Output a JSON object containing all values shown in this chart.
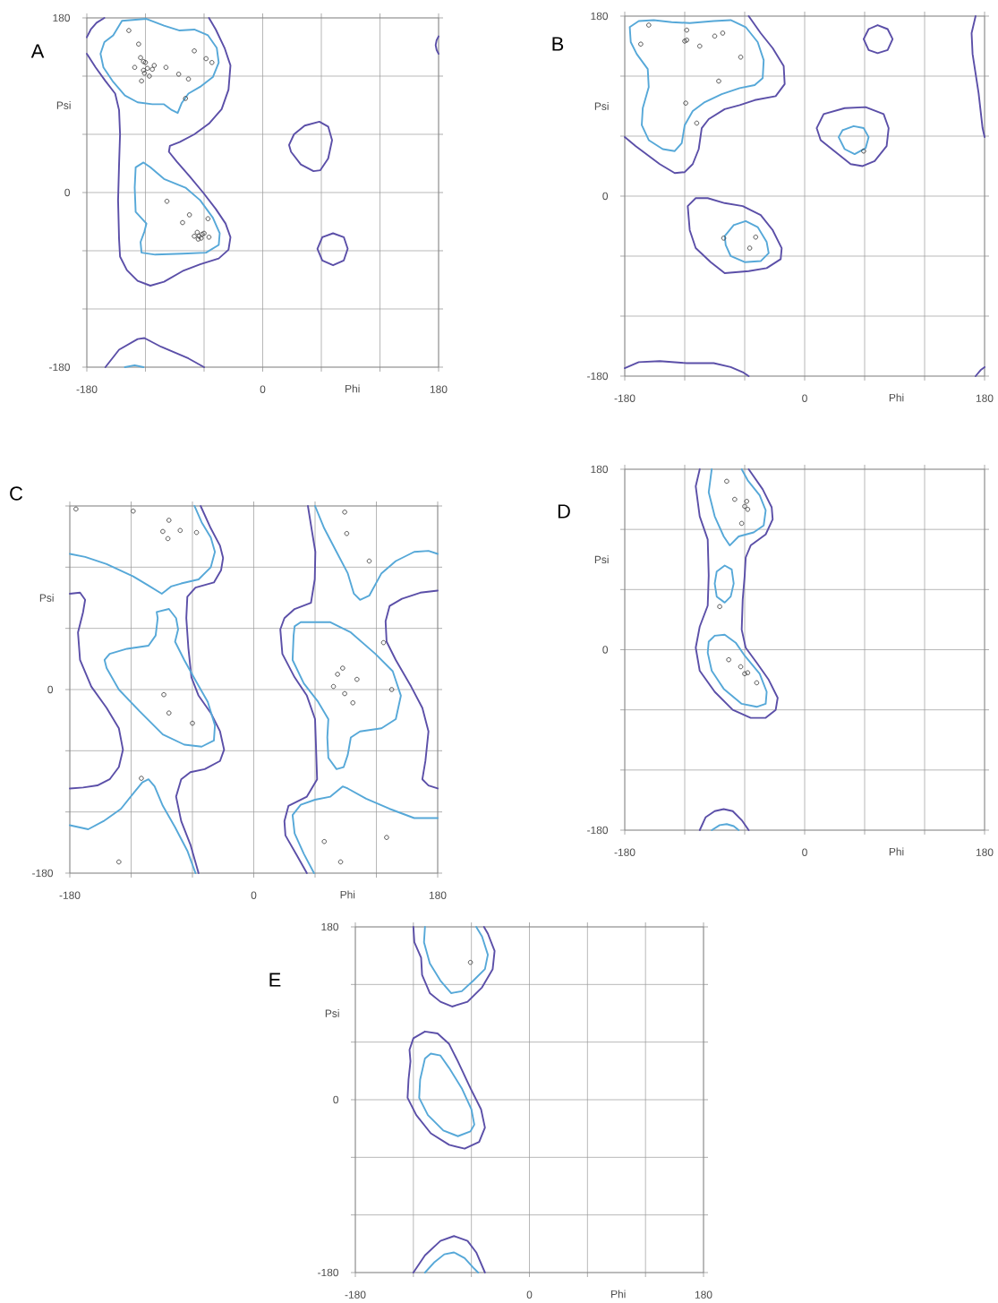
{
  "chart_data": [
    {
      "type": "scatter",
      "title": "A",
      "xlabel": "Phi",
      "ylabel": "Psi",
      "xlim": [
        -180,
        180
      ],
      "ylim": [
        -180,
        180
      ],
      "xticks": [
        -180,
        {
          "value": -120,
          "label": null
        },
        {
          "value": -60,
          "label": null
        },
        0,
        {
          "value": 60,
          "label": null
        },
        {
          "value": 120,
          "label": null
        },
        180
      ],
      "yticks": [
        -180,
        {
          "value": -120,
          "label": null
        },
        {
          "value": -60,
          "label": null
        },
        0,
        {
          "value": 60,
          "label": null
        },
        {
          "value": 120,
          "label": null
        },
        180
      ],
      "grid": true,
      "series": [
        {
          "type": "line",
          "color": "#5b4fa8",
          "x": [
            -162,
            -170,
            -176,
            -180
          ],
          "values": [
            180,
            175,
            168,
            160
          ]
        },
        {
          "type": "line",
          "color": "#5b4fa8",
          "x": [
            -180,
            -171,
            -161,
            -151,
            -147,
            -146,
            -147,
            -148,
            -147,
            -146,
            -139,
            -128,
            -115,
            -101,
            -82,
            -64,
            -45,
            -35,
            -33,
            -38,
            -48,
            -61,
            -75,
            -88,
            -96,
            -95,
            -85,
            -70,
            -55,
            -42,
            -35,
            -33,
            -39,
            -48,
            -55
          ],
          "values": [
            143,
            129,
            115,
            102,
            85,
            60,
            29,
            -8,
            -48,
            -66,
            -80,
            -91,
            -96,
            -92,
            -81,
            -74,
            -68,
            -59,
            -46,
            -32,
            -17,
            0,
            17,
            32,
            42,
            48,
            52,
            60,
            71,
            86,
            106,
            131,
            149,
            168,
            180
          ]
        },
        {
          "type": "line",
          "color": "#5b4fa8",
          "x": [
            32,
            43,
            58,
            67,
            71,
            67,
            59,
            52,
            39,
            29,
            27,
            32,
            43
          ],
          "values": [
            60,
            69,
            73,
            68,
            54,
            35,
            23,
            22,
            29,
            42,
            49,
            60,
            69
          ]
        },
        {
          "type": "line",
          "color": "#5b4fa8",
          "x": [
            56,
            61,
            72,
            83,
            87,
            83,
            72,
            61,
            56,
            61
          ],
          "values": [
            -58,
            -46,
            -42,
            -46,
            -58,
            -70,
            -75,
            -70,
            -58,
            -46
          ]
        },
        {
          "type": "line",
          "color": "#5b4fa8",
          "x": [
            -161,
            -147,
            -128,
            -121,
            -104,
            -76,
            -60
          ],
          "values": [
            -180,
            -162,
            -151,
            -150,
            -159,
            -171,
            -180
          ]
        },
        {
          "type": "line",
          "color": "#56a8d8",
          "x": [
            -144,
            -119,
            -101,
            -85,
            -70,
            -56,
            -47,
            -45,
            -51,
            -64,
            -76,
            -83,
            -87,
            -93,
            -101,
            -113,
            -128,
            -141,
            -153,
            -163,
            -166,
            -162,
            -153,
            -144,
            -119
          ],
          "values": [
            177,
            179,
            172,
            167,
            168,
            162,
            149,
            134,
            119,
            109,
            102,
            92,
            82,
            85,
            91,
            91,
            93,
            100,
            114,
            129,
            143,
            155,
            162,
            177,
            179
          ]
        },
        {
          "type": "line",
          "color": "#56a8d8",
          "x": [
            -122,
            -115,
            -101,
            -79,
            -64,
            -51,
            -44,
            -45,
            -58,
            -82,
            -110,
            -124,
            -125,
            -121,
            -119,
            -130,
            -131,
            -130,
            -122,
            -115
          ],
          "values": [
            31,
            26,
            14,
            5,
            -8,
            -26,
            -42,
            -54,
            -62,
            -63,
            -64,
            -62,
            -51,
            -40,
            -32,
            -20,
            5,
            26,
            31,
            26
          ]
        },
        {
          "type": "line",
          "color": "#56a8d8",
          "x": [
            -141,
            -131,
            -122
          ],
          "values": [
            -180,
            -178,
            -180
          ]
        },
        {
          "type": "line",
          "color": "#5b4fa8",
          "x": [
            180,
            178,
            177,
            178,
            180
          ],
          "values": [
            161,
            157,
            152,
            147,
            143
          ]
        },
        {
          "color": "#404040",
          "marker": "circle",
          "x": [
            -137,
            -127,
            -125,
            -122,
            -120,
            -131,
            -111,
            -118,
            -113,
            -122,
            -121,
            -116,
            -124,
            -99,
            -86,
            -76,
            -70,
            -58,
            -52,
            -79,
            -98,
            -75,
            -82,
            -56,
            -67,
            -60,
            -70,
            -65,
            -63,
            -55,
            -66,
            -62
          ],
          "values": [
            167,
            153,
            139,
            135,
            134,
            129,
            131,
            128,
            127,
            126,
            123,
            120,
            115,
            129,
            122,
            117,
            146,
            138,
            134,
            97,
            -9,
            -23,
            -31,
            -27,
            -41,
            -42,
            -45,
            -45,
            -47,
            -46,
            -48,
            -43
          ]
        }
      ]
    },
    {
      "type": "scatter",
      "title": "B",
      "xlabel": "Phi",
      "ylabel": "Psi",
      "xlim": [
        -180,
        180
      ],
      "ylim": [
        -180,
        180
      ],
      "xticks": [
        -180,
        {
          "value": -120,
          "label": null
        },
        {
          "value": -60,
          "label": null
        },
        0,
        {
          "value": 60,
          "label": null
        },
        {
          "value": 120,
          "label": null
        },
        180
      ],
      "yticks": [
        -180,
        {
          "value": -120,
          "label": null
        },
        {
          "value": -60,
          "label": null
        },
        0,
        {
          "value": 60,
          "label": null
        },
        {
          "value": 120,
          "label": null
        },
        180
      ],
      "grid": true,
      "series": [
        {
          "type": "line",
          "color": "#5b4fa8",
          "x": [
            -180,
            -169,
            -145,
            -130,
            -120,
            -112,
            -106,
            -103,
            -96,
            -80,
            -65,
            -50,
            -29,
            -20,
            -21,
            -32,
            -44,
            -56
          ],
          "values": [
            59,
            50,
            32,
            23,
            24,
            32,
            47,
            68,
            77,
            87,
            91,
            96,
            100,
            112,
            130,
            148,
            163,
            180
          ]
        },
        {
          "type": "line",
          "color": "#5b4fa8",
          "x": [
            59,
            64,
            73,
            83,
            88,
            83,
            73,
            64,
            59,
            64
          ],
          "values": [
            157,
            167,
            171,
            167,
            157,
            146,
            143,
            146,
            157,
            167
          ]
        },
        {
          "type": "line",
          "color": "#5b4fa8",
          "x": [
            171,
            167,
            168,
            174,
            178,
            180
          ],
          "values": [
            180,
            163,
            142,
            103,
            68,
            59
          ]
        },
        {
          "type": "line",
          "color": "#5b4fa8",
          "x": [
            12,
            19,
            40,
            61,
            79,
            84,
            82,
            70,
            58,
            46,
            31,
            16,
            12,
            19
          ],
          "values": [
            68,
            82,
            88,
            89,
            82,
            68,
            50,
            35,
            30,
            32,
            44,
            56,
            68,
            82
          ]
        },
        {
          "type": "line",
          "color": "#5b4fa8",
          "x": [
            -117,
            -109,
            -97,
            -80,
            -62,
            -44,
            -32,
            -23,
            -24,
            -38,
            -56,
            -80,
            -94,
            -109,
            -115,
            -117,
            -109
          ],
          "values": [
            -10,
            -2,
            -2,
            -7,
            -10,
            -19,
            -34,
            -52,
            -63,
            -72,
            -75,
            -77,
            -66,
            -52,
            -34,
            -10,
            -2
          ]
        },
        {
          "type": "line",
          "color": "#5b4fa8",
          "x": [
            -180,
            -166,
            -145,
            -118,
            -91,
            -74,
            -62,
            -56
          ],
          "values": [
            -172,
            -166,
            -165,
            -167,
            -167,
            -171,
            -176,
            -180
          ]
        },
        {
          "type": "line",
          "color": "#5b4fa8",
          "x": [
            171,
            176,
            180
          ],
          "values": [
            -180,
            -174,
            -171
          ]
        },
        {
          "type": "line",
          "color": "#56a8d8",
          "x": [
            -175,
            -166,
            -151,
            -133,
            -115,
            -91,
            -74,
            -59,
            -47,
            -41,
            -42,
            -50,
            -65,
            -83,
            -100,
            -112,
            -120,
            -123,
            -130,
            -142,
            -156,
            -163,
            -162,
            -156,
            -157,
            -168,
            -174,
            -175,
            -166
          ],
          "values": [
            169,
            175,
            176,
            174,
            173,
            175,
            176,
            169,
            154,
            136,
            118,
            111,
            108,
            102,
            94,
            85,
            71,
            53,
            45,
            47,
            56,
            71,
            88,
            109,
            127,
            142,
            154,
            169,
            175
          ]
        },
        {
          "type": "line",
          "color": "#56a8d8",
          "x": [
            34,
            38,
            49,
            59,
            64,
            61,
            50,
            40,
            34,
            38
          ],
          "values": [
            59,
            66,
            70,
            68,
            59,
            48,
            42,
            47,
            59,
            66
          ]
        },
        {
          "type": "line",
          "color": "#56a8d8",
          "x": [
            -80,
            -71,
            -59,
            -47,
            -38,
            -36,
            -44,
            -60,
            -74,
            -79,
            -80,
            -71
          ],
          "values": [
            -40,
            -29,
            -25,
            -31,
            -46,
            -57,
            -65,
            -66,
            -60,
            -49,
            -40,
            -29
          ]
        },
        {
          "color": "#404040",
          "marker": "circle",
          "x": [
            -156,
            -164,
            -118,
            -120,
            -118,
            -105,
            -90,
            -82,
            -64,
            -86,
            -119,
            -108,
            59,
            -81,
            -49,
            -55
          ],
          "values": [
            171,
            152,
            166,
            155,
            156,
            150,
            160,
            163,
            139,
            115,
            93,
            73,
            45,
            -42,
            -41,
            -52
          ]
        }
      ]
    },
    {
      "type": "scatter",
      "title": "C",
      "xlabel": "Phi",
      "ylabel": "Psi",
      "xlim": [
        -180,
        180
      ],
      "ylim": [
        -180,
        180
      ],
      "xticks": [
        -180,
        {
          "value": -120,
          "label": null
        },
        {
          "value": -60,
          "label": null
        },
        0,
        {
          "value": 60,
          "label": null
        },
        {
          "value": 120,
          "label": null
        },
        180
      ],
      "yticks": [
        -180,
        {
          "value": -120,
          "label": null
        },
        {
          "value": -60,
          "label": null
        },
        0,
        {
          "value": 60,
          "label": null
        },
        {
          "value": 120,
          "label": null
        },
        {
          "value": 180,
          "label": null
        }
      ],
      "grid": true,
      "series": [
        {
          "type": "line",
          "color": "#5b4fa8",
          "x": [
            -180,
            -170,
            -165,
            -167,
            -172,
            -170,
            -159,
            -144,
            -132,
            -128,
            -132,
            -141,
            -153,
            -167,
            -180
          ],
          "values": [
            94,
            95,
            88,
            76,
            56,
            29,
            3,
            -18,
            -38,
            -59,
            -76,
            -88,
            -94,
            -96,
            -97
          ]
        },
        {
          "type": "line",
          "color": "#5b4fa8",
          "x": [
            -52,
            -42,
            -33,
            -30,
            -32,
            -39,
            -57,
            -65,
            -66,
            -64,
            -61,
            -54,
            -42,
            -33,
            -29,
            -33,
            -48,
            -62,
            -71,
            -76,
            -71,
            -62,
            -54
          ],
          "values": [
            180,
            158,
            141,
            129,
            117,
            105,
            100,
            91,
            70,
            41,
            12,
            -6,
            -23,
            -41,
            -59,
            -70,
            -78,
            -81,
            -88,
            -105,
            -129,
            -152,
            -180
          ]
        },
        {
          "type": "line",
          "color": "#5b4fa8",
          "x": [
            53,
            57,
            60.3,
            59.7,
            56,
            40,
            30,
            26,
            28,
            40,
            52,
            60,
            62,
            52,
            34,
            30,
            31,
            43,
            52
          ],
          "values": [
            180,
            155,
            135,
            108,
            85,
            79,
            70,
            59,
            35,
            12,
            -6,
            -29,
            -88,
            -105,
            -114,
            -129,
            -143,
            -164,
            -180
          ]
        },
        {
          "type": "line",
          "color": "#5b4fa8",
          "x": [
            180,
            163,
            145,
            133,
            129,
            130,
            139,
            154,
            165,
            171,
            168,
            165,
            171,
            180
          ],
          "values": [
            97,
            95,
            89,
            82,
            67,
            47,
            29,
            3,
            -18,
            -41,
            -70,
            -88,
            -94,
            -97
          ]
        },
        {
          "type": "line",
          "color": "#56a8d8",
          "x": [
            -180,
            -165,
            -144,
            -118,
            -103,
            -90,
            -86,
            -81,
            -71,
            -54,
            -42,
            -38,
            -42,
            -51,
            -58
          ],
          "values": [
            133,
            130,
            123,
            111,
            102,
            94,
            97,
            101,
            104,
            108,
            120,
            135,
            149,
            164,
            180
          ]
        },
        {
          "type": "line",
          "color": "#56a8d8",
          "x": [
            -95,
            -83,
            -76,
            -74,
            -77,
            -68,
            -57,
            -45,
            -38,
            -39,
            -51,
            -68,
            -89,
            -112,
            -132,
            -144,
            -146,
            -141,
            -124,
            -103,
            -96,
            -94,
            -95,
            -83
          ],
          "values": [
            76,
            79,
            70,
            59,
            47,
            29,
            9,
            -12,
            -35,
            -50,
            -56,
            -54,
            -44,
            -21,
            0,
            21,
            29,
            35,
            40,
            43,
            53,
            70,
            76,
            79
          ]
        },
        {
          "type": "line",
          "color": "#56a8d8",
          "x": [
            -180,
            -162,
            -147,
            -130,
            -118,
            -109,
            -103,
            -97,
            -89,
            -77,
            -65,
            -57
          ],
          "values": [
            -133,
            -137,
            -129,
            -117,
            -102,
            -91,
            -88,
            -95,
            -114,
            -135,
            -158,
            -180
          ]
        },
        {
          "type": "line",
          "color": "#56a8d8",
          "x": [
            60,
            69,
            81,
            92,
            98,
            104,
            113,
            125,
            139,
            157,
            171,
            180
          ],
          "values": [
            180,
            158,
            135,
            114,
            94,
            88,
            92,
            114,
            126,
            135,
            136,
            133
          ]
        },
        {
          "type": "line",
          "color": "#56a8d8",
          "x": [
            40,
            46,
            75,
            95,
            119,
            136,
            144,
            139,
            125,
            104,
            95,
            92,
            88,
            81,
            73,
            72,
            73,
            63,
            49,
            38,
            39,
            40,
            46
          ],
          "values": [
            62,
            66,
            66,
            56,
            35,
            18,
            -6,
            -29,
            -38,
            -41,
            -47,
            -64,
            -76,
            -78,
            -67,
            -47,
            -29,
            -12,
            6,
            29,
            53,
            62,
            66
          ]
        },
        {
          "type": "line",
          "color": "#56a8d8",
          "x": [
            59,
            49,
            40,
            38,
            46,
            60,
            75,
            87,
            92,
            110,
            133,
            157,
            180
          ],
          "values": [
            -180,
            -161,
            -141,
            -123,
            -113,
            -108,
            -105,
            -95,
            -97,
            -107,
            -117,
            -126,
            -126
          ]
        },
        {
          "color": "#404040",
          "marker": "circle",
          "x": [
            -174,
            -118,
            -83,
            -89,
            -84,
            -72,
            -56,
            -88,
            -83,
            -60,
            -110,
            -132,
            89,
            91,
            113,
            127,
            87,
            82,
            101,
            78,
            89,
            97,
            135,
            69,
            85,
            130
          ],
          "values": [
            177,
            175,
            166,
            155,
            148,
            156,
            154,
            -5,
            -23,
            -33,
            -87,
            -169,
            174,
            153,
            126,
            46,
            21,
            15,
            10,
            3,
            -4,
            -13,
            0,
            -149,
            -169,
            -145
          ]
        }
      ]
    },
    {
      "type": "scatter",
      "title": "D",
      "xlabel": "Phi",
      "ylabel": "Psi",
      "xlim": [
        -180,
        180
      ],
      "ylim": [
        -180,
        180
      ],
      "xticks": [
        -180,
        {
          "value": -120,
          "label": null
        },
        {
          "value": -60,
          "label": null
        },
        0,
        {
          "value": 60,
          "label": null
        },
        {
          "value": 120,
          "label": null
        },
        180
      ],
      "yticks": [
        -180,
        {
          "value": -120,
          "label": null
        },
        {
          "value": -60,
          "label": null
        },
        0,
        {
          "value": 60,
          "label": null
        },
        {
          "value": 120,
          "label": null
        },
        180
      ],
      "grid": true,
      "series": [
        {
          "type": "line",
          "color": "#5b4fa8",
          "x": [
            -105,
            -109,
            -105,
            -97,
            -96,
            -97,
            -105,
            -109,
            -105,
            -90,
            -72,
            -54,
            -39,
            -29,
            -27,
            -36,
            -48,
            -59,
            -63,
            -62,
            -60,
            -59,
            -54,
            -39,
            -32,
            -33,
            -42,
            -56
          ],
          "values": [
            180,
            163,
            133,
            110,
            74,
            44,
            23,
            2,
            -21,
            -42,
            -60,
            -68,
            -68,
            -60,
            -48,
            -30,
            -13,
            2,
            20,
            50,
            74,
            92,
            104,
            115,
            130,
            142,
            160,
            180
          ]
        },
        {
          "type": "line",
          "color": "#5b4fa8",
          "x": [
            -105,
            -99,
            -90,
            -81,
            -72,
            -63,
            -56
          ],
          "values": [
            -180,
            -167,
            -161,
            -159,
            -161,
            -170,
            -180
          ]
        },
        {
          "type": "line",
          "color": "#56a8d8",
          "x": [
            -93,
            -96,
            -90,
            -81,
            -75,
            -66,
            -51,
            -41,
            -39,
            -45,
            -57,
            -63
          ],
          "values": [
            180,
            157,
            133,
            113,
            104,
            113,
            117,
            124,
            139,
            154,
            169,
            180
          ]
        },
        {
          "type": "line",
          "color": "#56a8d8",
          "x": [
            -90,
            -88,
            -80,
            -73,
            -71,
            -74,
            -80,
            -88,
            -90,
            -88
          ],
          "values": [
            66,
            78,
            84,
            80,
            66,
            53,
            47,
            53,
            66,
            78
          ]
        },
        {
          "type": "line",
          "color": "#56a8d8",
          "x": [
            -96,
            -90,
            -80,
            -69,
            -60,
            -45,
            -38,
            -39,
            -48,
            -63,
            -81,
            -93,
            -97,
            -96,
            -90
          ],
          "values": [
            8,
            14,
            15,
            7,
            -6,
            -24,
            -42,
            -54,
            -57,
            -54,
            -39,
            -21,
            -3,
            8,
            14
          ]
        },
        {
          "type": "line",
          "color": "#56a8d8",
          "x": [
            -93,
            -85,
            -78,
            -71,
            -66
          ],
          "values": [
            -180,
            -175,
            -174,
            -176,
            -180
          ]
        },
        {
          "color": "#404040",
          "marker": "circle",
          "x": [
            -78,
            -70,
            -58,
            -60,
            -57,
            -63,
            -85,
            -76,
            -64,
            -60,
            -57,
            -48
          ],
          "values": [
            168,
            150,
            148,
            143,
            140,
            126,
            43,
            -10,
            -17,
            -24,
            -23,
            -33
          ]
        }
      ]
    },
    {
      "type": "scatter",
      "title": "E",
      "xlabel": "Phi",
      "ylabel": "Psi",
      "xlim": [
        -180,
        180
      ],
      "ylim": [
        -180,
        180
      ],
      "xticks": [
        -180,
        {
          "value": -120,
          "label": null
        },
        {
          "value": -60,
          "label": null
        },
        0,
        {
          "value": 60,
          "label": null
        },
        {
          "value": 120,
          "label": null
        },
        180
      ],
      "yticks": [
        -180,
        {
          "value": -120,
          "label": null
        },
        {
          "value": -60,
          "label": null
        },
        0,
        {
          "value": 60,
          "label": null
        },
        {
          "value": 120,
          "label": null
        },
        180
      ],
      "grid": true,
      "series": [
        {
          "type": "line",
          "color": "#5b4fa8",
          "x": [
            -120,
            -119,
            -112,
            -111,
            -103,
            -92,
            -80,
            -64,
            -49,
            -38,
            -36,
            -43,
            -47
          ],
          "values": [
            180,
            164,
            148,
            130,
            111,
            102,
            97,
            102,
            117,
            136,
            155,
            173,
            180
          ]
        },
        {
          "type": "line",
          "color": "#5b4fa8",
          "x": [
            -120,
            -108,
            -95,
            -83,
            -74,
            -61,
            -50,
            -46,
            -52,
            -67,
            -83,
            -102,
            -117,
            -126,
            -125,
            -123,
            -124,
            -120,
            -108
          ],
          "values": [
            64,
            71,
            69,
            58,
            40,
            12,
            -10,
            -29,
            -44,
            -51,
            -47,
            -35,
            -16,
            2,
            21,
            40,
            52,
            64,
            71
          ]
        },
        {
          "type": "line",
          "color": "#5b4fa8",
          "x": [
            -120,
            -108,
            -92,
            -78,
            -64,
            -55,
            -46
          ],
          "values": [
            -180,
            -162,
            -147,
            -142,
            -147,
            -159,
            -180
          ]
        },
        {
          "type": "line",
          "color": "#56a8d8",
          "x": [
            -108,
            -109,
            -103,
            -92,
            -81,
            -70,
            -58,
            -46,
            -43,
            -49,
            -55
          ],
          "values": [
            180,
            164,
            142,
            124,
            111,
            113,
            124,
            136,
            151,
            170,
            180
          ]
        },
        {
          "type": "line",
          "color": "#56a8d8",
          "x": [
            -108,
            -102,
            -92,
            -83,
            -70,
            -60,
            -57,
            -61,
            -74,
            -89,
            -105,
            -114,
            -113,
            -108,
            -102
          ],
          "values": [
            43,
            48,
            46,
            33,
            12,
            -10,
            -26,
            -33,
            -38,
            -32,
            -16,
            2,
            21,
            43,
            48
          ]
        },
        {
          "type": "line",
          "color": "#56a8d8",
          "x": [
            -108,
            -98,
            -88,
            -78,
            -67,
            -58,
            -53
          ],
          "values": [
            -180,
            -169,
            -161,
            -159,
            -165,
            -175,
            -180
          ]
        },
        {
          "color": "#404040",
          "marker": "circle",
          "x": [
            -61
          ],
          "values": [
            143
          ]
        }
      ]
    }
  ]
}
